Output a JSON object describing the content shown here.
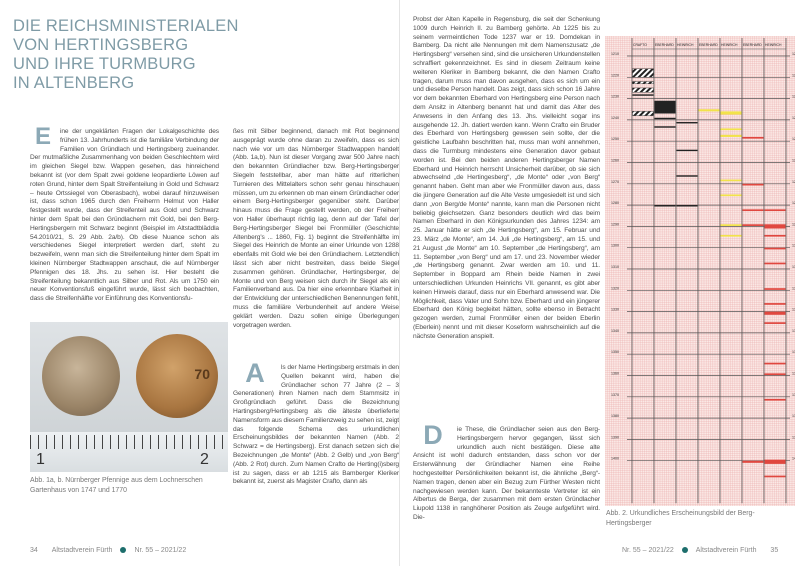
{
  "title": [
    "DIE REICHSMINISTERIALEN",
    "VON HERTINGSBERG",
    "UND IHRE TURMBURG",
    "IN ALTENBERG"
  ],
  "left": {
    "col1_drop": "E",
    "col1": "ine der ungeklärten Fragen der Lokalgeschichte des frühen 13. Jahrhunderts ist die familiäre Verbindung der Familien von Gründlach und Hertingsberg zueinander. Der mutmaßliche Zusammenhang von beiden Geschlechtern wird im gleichen Siegel bzw. Wappen gesehen, das hinreichend bekannt ist (vor dem Spalt zwei goldene leopardierte Löwen auf roten Grund, hinter dem Spalt Streifenteilung in Gold und Schwarz – heute Ortssiegel von Oberasbach), wobei darauf hinzuweisen ist, dass schon 1965 durch den Freiherrn Helmut von Haller festgestellt wurde, dass der Streifenteil aus Gold und Schwarz hinter dem Spalt bei den Gründlachern mit Gold, bei den Berg-Hertingsbergern mit Schwarz beginnt (Beispiel im Altstadtbläddla 54.2010/21, S. 29 Abb. 2a/b). Ob diese Nuance schon als verschiedenes Siegel interpretiert werden darf, steht zu bezweifeln, wenn man sich die Streifenteilung hinter dem Spalt im kleinen Nürnberger Stadtwappen anschaut, die auf Nürnberger Pfennigen des 18. Jhs. zu sehen ist. Hier besteht die Streifenteilung bekanntlich aus Silber und Rot. Als um 1750 ein neuer Konventionsfuß eingeführt wurde, lässt sich beobachten, dass die Streifenhälfte vor Einführung des Konventionsfu-",
    "col2": "ßes mit Silber beginnend, danach mit Rot beginnend ausgeprägt wurde ohne daran zu zweifeln, dass es sich nach wie vor um das Nürnberger Stadtwappen handelt (Abb. 1a,b). Nun ist dieser Vorgang zwar 500 Jahre nach den bekannten Gründlacher bzw. Berg-Hertingsberger Siegeln feststellbar, aber man hätte auf ritterlichen Turnieren des Mittelalters schon sehr genau hinschauen müssen, um zu erkennen ob man einem Gründlacher oder einem Berg-Hertingsberger gegenüber steht. Darüber hinaus muss die Frage gestellt werden, ob der Freiherr von Haller überhaupt richtig lag, denn auf der Tafel der Berg-Hertingsberger Siegel bei Fronmüller (Geschichte Altenberg's ... 1860, Fig. 1) beginnt die Streifenhälfte im Siegel des Heinrich de Monte an einer Urkunde von 1288 ebenfalls mit Gold wie bei den Gründlachern. Letztendlich lässt sich aber nicht bestreiten, dass beide Siegel zusammen gehören. Gründlacher, Hertingsberger, de Monte und von Berg weisen sich durch ihr Siegel als ein Familienverband aus. Da hier eine erkennbare Klarheit in der Entwicklung der unterschiedlichen Benennungen fehlt, muss die familiäre Verbundenheit auf andere Weise geklärt werden. Dazu sollen einige Überlegungen vorgetragen werden.",
    "col2b_drop": "A",
    "col2b": "ls der Name Hertingsberg erstmals in den Quellen bekannt wird, haben die Gründlacher schon 77 Jahre (2 – 3 Generationen) ihren Namen nach dem Stammsitz in Großgründlach geführt. Dass die Bezeichnung Hartingsberg/Hertingsberg als die älteste überlieferte Namensform aus diesem Familienzweig zu sehen ist, zeigt das folgende Schema des urkundlichen Erscheinungsbildes der bekannten Namen (Abb. 2 Schwarz = de Hertingsberg). Erst danach setzen sich die Bezeichnungen „de Monte“ (Abb. 2 Gelb) und „von Berg“ (Abb. 2 Rot) durch. Zum Namen Crafto de Herting(i)sberg ist zu sagen, dass er ab 1215 als Bamberger Kleriker bekannt ist, zuerst als Magister Crafto, dann als",
    "photo": {
      "coin2_year": "70",
      "ruler_labels": [
        "1",
        "2"
      ]
    },
    "caption": "Abb. 1a, b. Nürnberger Pfennige aus dem Lochnerschen Gartenhaus von 1747 und 1770",
    "footer": {
      "page": "34",
      "publisher": "Altstadtverein Fürth",
      "issue": "Nr. 55 – 2021/22"
    }
  },
  "right": {
    "col1": "Probst der Alten Kapelle in Regensburg, die seit der Schenkung 1009 durch Heinrich II. zu Bamberg gehörte. Ab 1225 bis zu seinem vermeintlichen Tode 1237 war er 19. Domdekan in Bamberg. Da nicht alle Nennungen mit dem Namenszusatz „de Hertingsberg“ versehen sind, sind die unsicheren Urkundenstellen schraffiert gekennzeichnet. Es sind in diesem Zeitraum keine weiteren Kleriker in Bamberg bekannt, die den Namen Crafto tragen, darum muss man davon ausgehen, dass es sich um ein und dieselbe Person handelt. Das zeigt, dass sich schon 16 Jahre vor dem bekannten Eberhard von Hertingsberg eine Person nach dem Ansitz in Altenberg benannt hat und damit das Alter des Anwesens in den Anfang des 13. Jhs. vielleicht sogar ins ausgehende 12. Jh. datiert werden kann. Wenn Crafto ein Bruder des Eberhard von Hertingsberg gewesen sein sollte, der die geistliche Laufbahn beschritten hat, muss man wohl annehmen, dass die Turmburg mindestens eine Generation davor gebaut worden ist. Bei den beiden anderen Hertingsberger Namen Eberhard und Heinrich herrscht Unsicherheit darüber, ob sie sich abwechselnd „de Hertingesberg“, „de Monte“ oder „von Berg“ genannt haben. Geht man aber wie Fronmüller davon aus, dass die jüngere Generation auf die Alte Veste umgesiedelt ist und sich dann „von Berg/de Monte“ nannte, kann man die Personen nicht beliebig gleichsetzen. Ganz besonders deutlich wird das beim Namen Eberhard in den Königsurkunden des Jahres 1234: am 25. Januar hätte er sich „de Hertingsberg“, am 15. Februar und 23. März „de Monte“, am 14. Juli „de Hertingsberg“, am 15. und 21 August „de Monte“ am 10. September „de Hertingsberg“, am 11. September „von Berg“ und am 17. und 23. November wieder „de Hertingsberg genannt. Zwar werden am 10. und 11. September in Boppard am Rhein beide Namen in zwei unterschiedlichen Urkunden Heinrichs VII. genannt, es gibt aber keinen Hinweis darauf, dass nur ein Eberhard anwesend war. Die Möglichkeit, dass Vater und Sohn bzw. Eberhard und ein jüngerer Eberhard den König begleitet hätten, sollte ebenso in Betracht gezogen werden, zumal Fronmüller einen der beiden Eberlin (Eberlein) nennt und mit dieser Koseform wahrscheinlich auf die nächste Generation anspielt.",
    "col1b_drop": "D",
    "col1b": "ie These, die Gründlacher seien aus den Berg-Hertingsbergern hervor gegangen, lässt sich urkundlich auch nicht bestätigen. Diese alte Ansicht ist wohl dadurch entstanden, dass schon vor der Ersterwähnung der Gründlacher Namen eine Reihe hochgestellter Persönlichkeiten bekannt ist, die ähnliche „Berg“-Namen tragen, denen aber ein Bezug zum Fürther Westen nicht nachgewiesen werden kann. Der bekannteste Vertreter ist ein Albertus de Berga, der zusammen mit dem ersten Gründlacher Liupold 1138 in ranghöherer Position als Zeuge aufgeführt wird. Die-",
    "caption": "Abb. 2. Urkundliches Erscheinungsbild der Berg-Hertingsberger",
    "footer": {
      "issue": "Nr. 55 – 2021/22",
      "publisher": "Altstadtverein Fürth",
      "page": "35"
    }
  },
  "chart_data": {
    "type": "timeline-chart",
    "columns": [
      "CRAFTO",
      "EBERHARD",
      "HEINRICH",
      "EBERHARD",
      "HEINRICH",
      "EBERHARD",
      "HEINRICH"
    ],
    "y_ticks": [
      1210,
      1220,
      1230,
      1240,
      1250,
      1260,
      1270,
      1280,
      1290,
      1300,
      1310,
      1320,
      1330,
      1340,
      1350,
      1360,
      1370,
      1380,
      1390,
      1400
    ],
    "ylim": [
      1200,
      1420
    ],
    "colors": {
      "black": "#222222",
      "yellow": "#f2e24a",
      "red": "#e0473f",
      "grid": "#e9a9a9",
      "paper": "#fbe9e6"
    },
    "marks": [
      {
        "col": 0,
        "from": 1216,
        "to": 1220,
        "style": "hatched"
      },
      {
        "col": 0,
        "from": 1222,
        "to": 1223,
        "style": "hatched"
      },
      {
        "col": 0,
        "from": 1225,
        "to": 1227,
        "style": "hatched"
      },
      {
        "col": 0,
        "from": 1228,
        "to": 1228.6,
        "style": "black"
      },
      {
        "col": 0,
        "from": 1236,
        "to": 1238,
        "style": "hatched"
      },
      {
        "col": 1,
        "from": 1231,
        "to": 1237,
        "style": "black"
      },
      {
        "col": 1,
        "from": 1239,
        "to": 1239.6,
        "style": "black"
      },
      {
        "col": 1,
        "from": 1243,
        "to": 1243.6,
        "style": "black"
      },
      {
        "col": 2,
        "from": 1241,
        "to": 1241.6,
        "style": "black"
      },
      {
        "col": 2,
        "from": 1254,
        "to": 1254.6,
        "style": "black"
      },
      {
        "col": 2,
        "from": 1266,
        "to": 1266.6,
        "style": "black"
      },
      {
        "col": 1,
        "from": 1280,
        "to": 1280.6,
        "style": "black"
      },
      {
        "col": 2,
        "from": 1280,
        "to": 1280.6,
        "style": "black"
      },
      {
        "col": 3,
        "from": 1235,
        "to": 1236,
        "style": "yellow"
      },
      {
        "col": 4,
        "from": 1236,
        "to": 1237.5,
        "style": "yellow"
      },
      {
        "col": 4,
        "from": 1244,
        "to": 1244.8,
        "style": "yellow"
      },
      {
        "col": 4,
        "from": 1247,
        "to": 1248,
        "style": "yellow"
      },
      {
        "col": 4,
        "from": 1268,
        "to": 1268.8,
        "style": "yellow"
      },
      {
        "col": 4,
        "from": 1275,
        "to": 1275.8,
        "style": "yellow"
      },
      {
        "col": 4,
        "from": 1289,
        "to": 1289.8,
        "style": "yellow"
      },
      {
        "col": 4,
        "from": 1294,
        "to": 1294.8,
        "style": "yellow"
      },
      {
        "col": 5,
        "from": 1248,
        "to": 1248.8,
        "style": "red"
      },
      {
        "col": 5,
        "from": 1270,
        "to": 1270.8,
        "style": "red"
      },
      {
        "col": 5,
        "from": 1282,
        "to": 1282.8,
        "style": "red"
      },
      {
        "col": 6,
        "from": 1282,
        "to": 1282.8,
        "style": "red"
      },
      {
        "col": 5,
        "from": 1289,
        "to": 1289.8,
        "style": "red"
      },
      {
        "col": 6,
        "from": 1289,
        "to": 1291,
        "style": "red"
      },
      {
        "col": 6,
        "from": 1294,
        "to": 1294.8,
        "style": "red"
      },
      {
        "col": 6,
        "from": 1300,
        "to": 1300.8,
        "style": "red"
      },
      {
        "col": 6,
        "from": 1307,
        "to": 1307.8,
        "style": "red"
      },
      {
        "col": 6,
        "from": 1319,
        "to": 1319.8,
        "style": "red"
      },
      {
        "col": 6,
        "from": 1326,
        "to": 1326.8,
        "style": "red"
      },
      {
        "col": 6,
        "from": 1330,
        "to": 1331.5,
        "style": "red"
      },
      {
        "col": 6,
        "from": 1335,
        "to": 1335.8,
        "style": "red"
      },
      {
        "col": 6,
        "from": 1354,
        "to": 1354.8,
        "style": "red"
      },
      {
        "col": 6,
        "from": 1359,
        "to": 1359.8,
        "style": "red"
      },
      {
        "col": 6,
        "from": 1371,
        "to": 1371.8,
        "style": "red"
      },
      {
        "col": 5,
        "from": 1400,
        "to": 1401,
        "style": "red"
      },
      {
        "col": 6,
        "from": 1399.5,
        "to": 1401.5,
        "style": "red"
      },
      {
        "col": 6,
        "from": 1407,
        "to": 1407.8,
        "style": "red"
      }
    ]
  }
}
